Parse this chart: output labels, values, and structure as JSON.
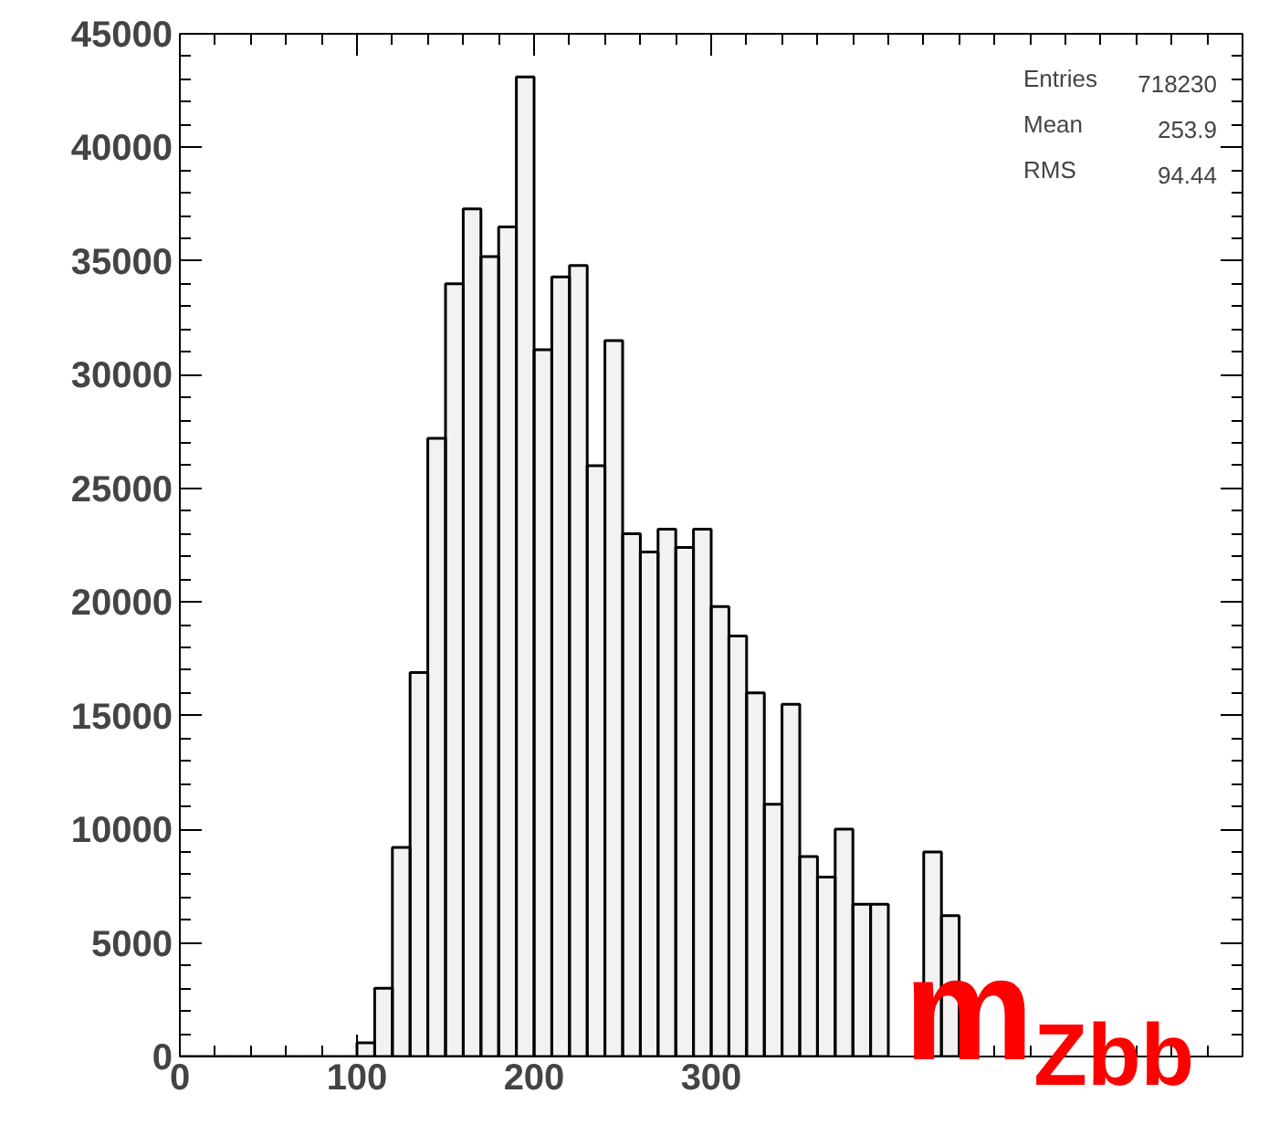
{
  "chart_data": {
    "type": "histogram",
    "xlabel": "m$_{Zbb}$",
    "bins": [
      0,
      10,
      20,
      30,
      40,
      50,
      60,
      70,
      80,
      90,
      100,
      110,
      120,
      130,
      140,
      150,
      160,
      170,
      180,
      190,
      200,
      210,
      220,
      230,
      240,
      250,
      260,
      270,
      280,
      290,
      300,
      310,
      320,
      330,
      340,
      350,
      360,
      370,
      380,
      390,
      400,
      410,
      420,
      430,
      440
    ],
    "values": [
      0,
      0,
      0,
      0,
      0,
      0,
      0,
      0,
      0,
      0,
      600,
      3000,
      9200,
      16900,
      27200,
      34000,
      37300,
      35200,
      36500,
      43100,
      31100,
      34300,
      34800,
      26000,
      31500,
      23000,
      22200,
      23200,
      22400,
      23200,
      19800,
      18500,
      16000,
      11100,
      15500,
      8800,
      7900,
      10000,
      6700,
      6700,
      null,
      null,
      9000,
      6200
    ],
    "color": "#000000",
    "xlim": [
      0,
      600
    ],
    "ylim": [
      0,
      45000
    ],
    "xticks": [
      0,
      100,
      200,
      300
    ],
    "yticks": [
      0,
      5000,
      10000,
      15000,
      20000,
      25000,
      30000,
      35000,
      40000,
      45000
    ],
    "grid": false,
    "annotations": [
      "Entries 718230",
      "Mean 253.9",
      "RMS 94.44"
    ]
  }
}
